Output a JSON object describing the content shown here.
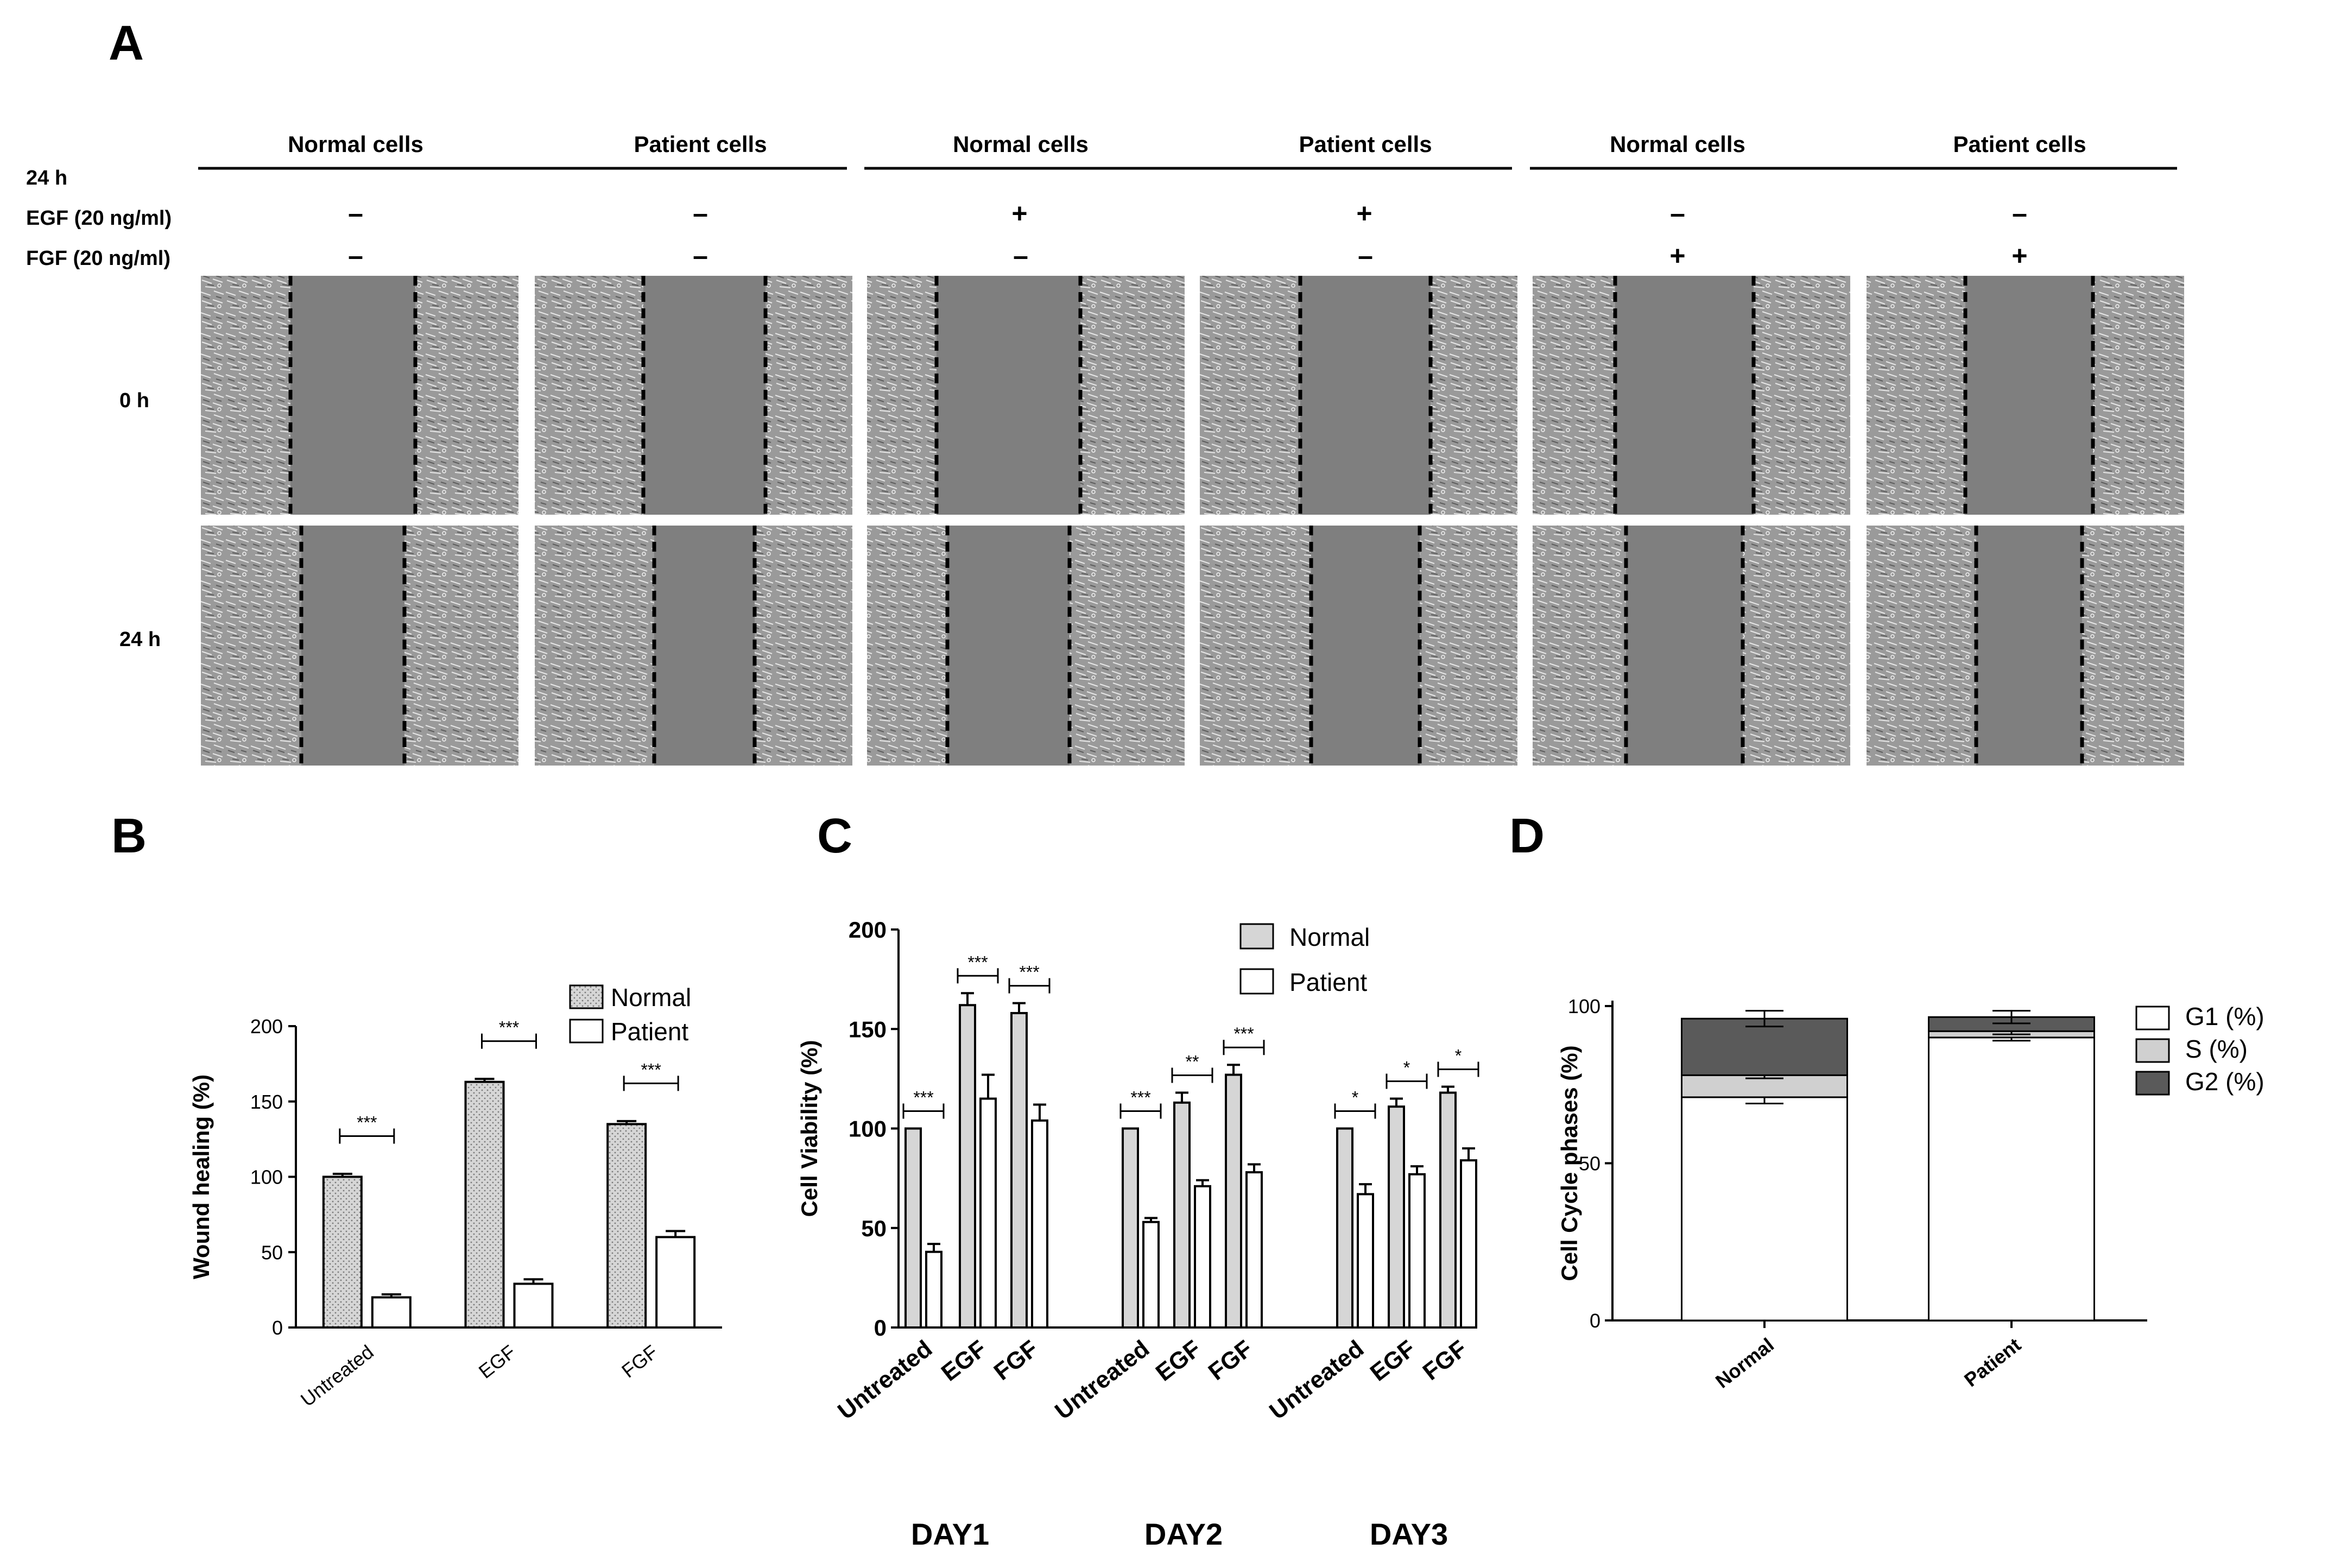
{
  "panel_a": {
    "label": "A",
    "group_headers": [
      "Normal cells",
      "Patient cells",
      "Normal cells",
      "Patient cells",
      "Normal cells",
      "Patient cells"
    ],
    "row_labels": {
      "time": "24 h",
      "egf": "EGF (20 ng/ml)",
      "fgf": "FGF (20 ng/ml)"
    },
    "egf_signs": [
      "-",
      "-",
      "+",
      "+",
      "-",
      "-"
    ],
    "fgf_signs": [
      "-",
      "-",
      "-",
      "-",
      "+",
      "+"
    ],
    "image_row_labels": [
      "0 h",
      "24 h"
    ]
  },
  "chart_data": [
    {
      "id": "B",
      "label": "B",
      "type": "bar",
      "categories": [
        "Untreated",
        "EGF",
        "FGF"
      ],
      "series": [
        {
          "name": "Normal",
          "values": [
            100,
            163,
            135
          ],
          "errors": [
            2,
            2,
            2
          ]
        },
        {
          "name": "Patient",
          "values": [
            20,
            29,
            60
          ],
          "errors": [
            2,
            3,
            4
          ]
        }
      ],
      "ylabel": "Wound healing (%)",
      "ylim": [
        0,
        200
      ],
      "yticks": [
        0,
        50,
        100,
        150,
        200
      ],
      "significance": [
        "***",
        "***",
        "***"
      ],
      "legend": [
        "Normal",
        "Patient"
      ]
    },
    {
      "id": "C",
      "label": "C",
      "type": "bar",
      "groups": [
        "DAY1",
        "DAY2",
        "DAY3"
      ],
      "categories": [
        "Untreated",
        "EGF",
        "FGF",
        "Untreated",
        "EGF",
        "FGF",
        "Untreated",
        "EGF",
        "FGF"
      ],
      "series": [
        {
          "name": "Normal",
          "values": [
            100,
            162,
            158,
            100,
            113,
            127,
            100,
            111,
            118
          ],
          "errors": [
            0,
            6,
            5,
            0,
            5,
            5,
            0,
            4,
            3
          ]
        },
        {
          "name": "Patient",
          "values": [
            38,
            115,
            104,
            53,
            71,
            78,
            67,
            77,
            84
          ],
          "errors": [
            4,
            12,
            8,
            2,
            3,
            4,
            5,
            4,
            6
          ]
        }
      ],
      "ylabel": "Cell Viability (%)",
      "ylim": [
        0,
        200
      ],
      "yticks": [
        0,
        50,
        100,
        150,
        200
      ],
      "significance": [
        "***",
        "***",
        "***",
        "***",
        "**",
        "***",
        "*",
        "*",
        "*"
      ],
      "legend": [
        "Normal",
        "Patient"
      ]
    },
    {
      "id": "D",
      "label": "D",
      "type": "bar",
      "stacked": true,
      "categories": [
        "Normal",
        "Patient"
      ],
      "series": [
        {
          "name": "G1 (%)",
          "values": [
            71,
            90
          ],
          "errors": [
            2,
            1
          ],
          "color": "#ffffff"
        },
        {
          "name": "S (%)",
          "values": [
            7,
            2
          ],
          "errors": [
            1,
            1
          ],
          "color": "#d0d0d0"
        },
        {
          "name": "G2 (%)",
          "values": [
            18,
            4.5
          ],
          "errors": [
            2.5,
            2
          ],
          "color": "#5a5a5a"
        }
      ],
      "ylabel": "Cell Cycle phases (%)",
      "ylim": [
        0,
        100
      ],
      "yticks": [
        0,
        50,
        100
      ],
      "legend": [
        "G1 (%)",
        "S (%)",
        "G2 (%)"
      ]
    }
  ],
  "colors": {
    "normal_fill": "#d6d6d6",
    "patient_fill": "#ffffff",
    "image_gap": "#7f7f7f",
    "stroke": "#000000"
  }
}
